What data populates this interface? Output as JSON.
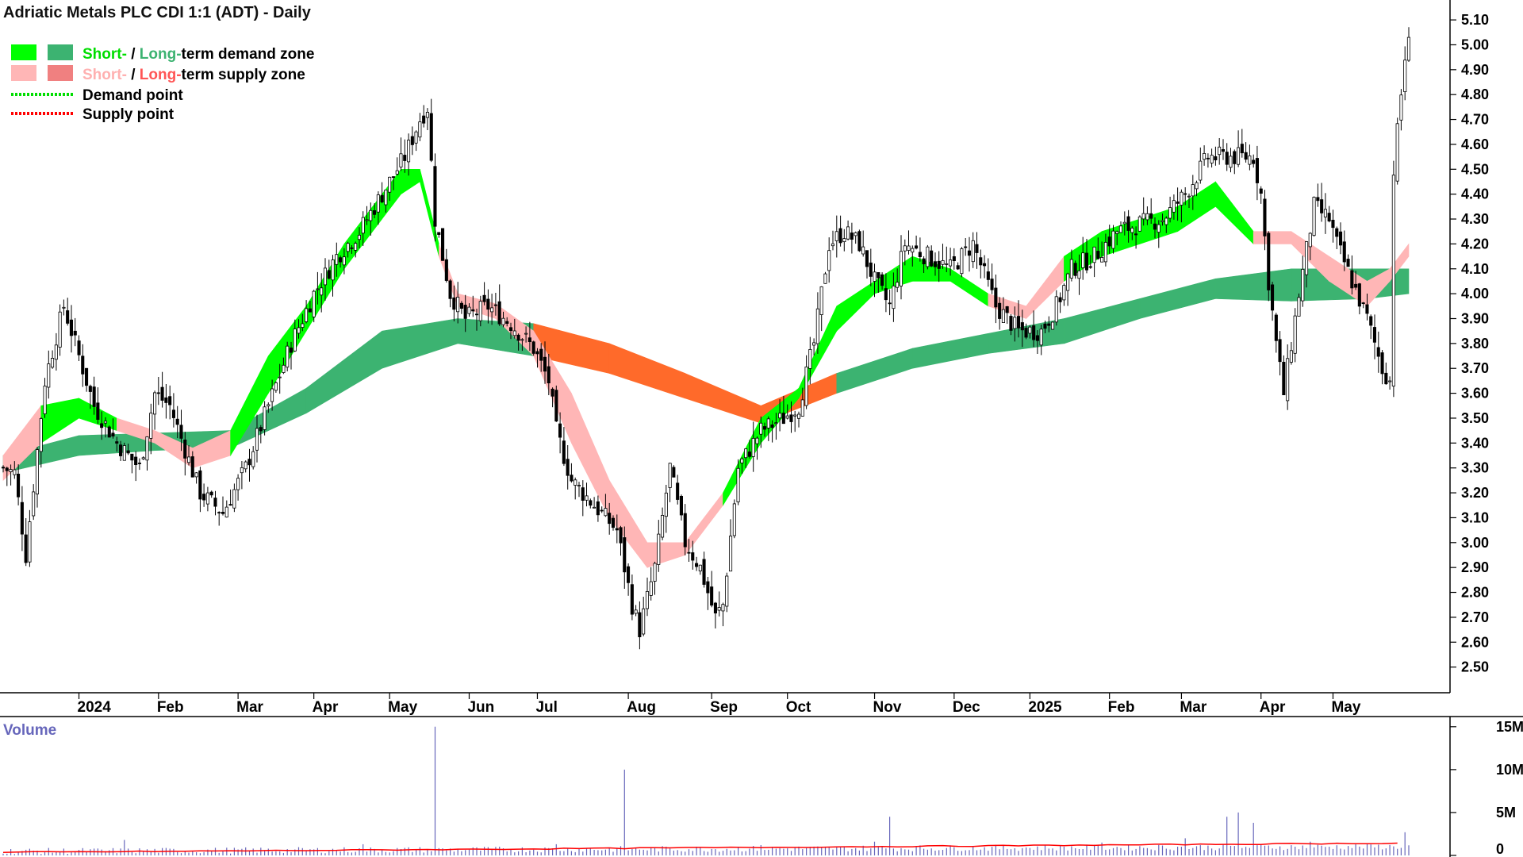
{
  "chart_data": {
    "type": "candlestick",
    "title": "Adriatic Metals PLC CDI 1:1 (ADT) - Daily",
    "frequency": "Daily",
    "ylim": [
      2.4,
      5.18
    ],
    "y_ticks": [
      "5.10",
      "5.00",
      "4.90",
      "4.80",
      "4.70",
      "4.60",
      "4.50",
      "4.40",
      "4.30",
      "4.20",
      "4.10",
      "4.00",
      "3.90",
      "3.80",
      "3.70",
      "3.60",
      "3.50",
      "3.40",
      "3.30",
      "3.20",
      "3.10",
      "3.00",
      "2.90",
      "2.80",
      "2.70",
      "2.60",
      "2.50"
    ],
    "months": [
      "2024",
      "Feb",
      "Mar",
      "Apr",
      "May",
      "Jun",
      "Jul",
      "Aug",
      "Sep",
      "Oct",
      "Nov",
      "Dec",
      "2025",
      "Feb",
      "Mar",
      "Apr",
      "May"
    ],
    "legend": {
      "demand_zone": {
        "short": "Short-",
        "sep": " / ",
        "long": "Long-",
        "rest": "term demand zone"
      },
      "supply_zone": {
        "short": "Short-",
        "sep": " / ",
        "long": "Long-",
        "rest": "term supply zone"
      },
      "demand_point": "Demand point",
      "supply_point": "Supply point"
    },
    "price_path": [
      [
        0,
        3.3
      ],
      [
        3,
        3.28
      ],
      [
        6,
        2.95
      ],
      [
        11,
        3.65
      ],
      [
        16,
        3.95
      ],
      [
        24,
        3.55
      ],
      [
        30,
        3.4
      ],
      [
        36,
        3.3
      ],
      [
        40,
        3.6
      ],
      [
        44,
        3.55
      ],
      [
        52,
        3.2
      ],
      [
        58,
        3.12
      ],
      [
        64,
        3.3
      ],
      [
        70,
        3.55
      ],
      [
        76,
        3.8
      ],
      [
        82,
        4.0
      ],
      [
        88,
        4.15
      ],
      [
        94,
        4.25
      ],
      [
        100,
        4.4
      ],
      [
        106,
        4.55
      ],
      [
        110,
        4.7
      ],
      [
        112,
        4.75
      ],
      [
        114,
        4.3
      ],
      [
        118,
        4.0
      ],
      [
        122,
        3.9
      ],
      [
        128,
        3.95
      ],
      [
        134,
        3.88
      ],
      [
        140,
        3.78
      ],
      [
        144,
        3.65
      ],
      [
        146,
        3.45
      ],
      [
        150,
        3.25
      ],
      [
        156,
        3.15
      ],
      [
        162,
        3.05
      ],
      [
        166,
        2.75
      ],
      [
        168,
        2.65
      ],
      [
        172,
        2.9
      ],
      [
        176,
        3.3
      ],
      [
        180,
        3.0
      ],
      [
        184,
        2.9
      ],
      [
        188,
        2.7
      ],
      [
        190,
        2.75
      ],
      [
        194,
        3.3
      ],
      [
        200,
        3.45
      ],
      [
        206,
        3.5
      ],
      [
        210,
        3.55
      ],
      [
        214,
        3.8
      ],
      [
        218,
        4.2
      ],
      [
        222,
        4.25
      ],
      [
        226,
        4.2
      ],
      [
        230,
        4.05
      ],
      [
        234,
        3.95
      ],
      [
        238,
        4.2
      ],
      [
        244,
        4.15
      ],
      [
        250,
        4.1
      ],
      [
        256,
        4.2
      ],
      [
        262,
        3.95
      ],
      [
        268,
        3.85
      ],
      [
        274,
        3.85
      ],
      [
        278,
        3.95
      ],
      [
        282,
        4.1
      ],
      [
        288,
        4.15
      ],
      [
        294,
        4.25
      ],
      [
        300,
        4.28
      ],
      [
        306,
        4.3
      ],
      [
        312,
        4.4
      ],
      [
        318,
        4.55
      ],
      [
        324,
        4.55
      ],
      [
        330,
        4.55
      ],
      [
        332,
        4.4
      ],
      [
        334,
        4.05
      ],
      [
        336,
        3.8
      ],
      [
        338,
        3.6
      ],
      [
        342,
        4.0
      ],
      [
        346,
        4.35
      ],
      [
        350,
        4.3
      ],
      [
        352,
        4.2
      ],
      [
        356,
        4.05
      ],
      [
        360,
        3.9
      ],
      [
        362,
        3.8
      ],
      [
        364,
        3.7
      ],
      [
        366,
        3.65
      ],
      [
        367,
        4.5
      ],
      [
        370,
        4.95
      ],
      [
        371,
        5.0
      ]
    ],
    "zones": {
      "long_term": {
        "x": [
          0,
          20,
          40,
          60,
          80,
          100,
          120,
          140,
          160,
          180,
          200,
          220,
          240,
          260,
          280,
          300,
          320,
          340,
          360,
          371
        ],
        "lower": [
          3.28,
          3.35,
          3.37,
          3.38,
          3.52,
          3.7,
          3.8,
          3.75,
          3.68,
          3.58,
          3.48,
          3.6,
          3.7,
          3.76,
          3.8,
          3.9,
          3.98,
          3.97,
          3.98,
          4.0
        ],
        "upper": [
          3.35,
          3.43,
          3.44,
          3.45,
          3.62,
          3.85,
          3.9,
          3.88,
          3.8,
          3.68,
          3.55,
          3.68,
          3.78,
          3.84,
          3.9,
          3.98,
          4.06,
          4.1,
          4.1,
          4.1
        ],
        "kind": [
          "d",
          "d",
          "d",
          "d",
          "d",
          "d",
          "d",
          "s",
          "s",
          "s",
          "s",
          "d",
          "d",
          "d",
          "d",
          "d",
          "d",
          "d",
          "d",
          "d"
        ]
      },
      "short_term": {
        "x": [
          0,
          10,
          20,
          30,
          40,
          50,
          60,
          70,
          80,
          90,
          100,
          105,
          110,
          115,
          120,
          130,
          140,
          150,
          160,
          170,
          180,
          190,
          200,
          210,
          220,
          230,
          240,
          250,
          260,
          270,
          280,
          290,
          300,
          310,
          320,
          330,
          340,
          350,
          360,
          366,
          371
        ],
        "lower": [
          3.25,
          3.4,
          3.5,
          3.45,
          3.4,
          3.3,
          3.35,
          3.6,
          3.85,
          4.1,
          4.3,
          4.4,
          4.45,
          4.15,
          3.95,
          3.9,
          3.75,
          3.4,
          3.1,
          2.9,
          2.95,
          3.15,
          3.4,
          3.58,
          3.85,
          4.0,
          4.05,
          4.05,
          3.95,
          3.9,
          4.05,
          4.15,
          4.2,
          4.25,
          4.35,
          4.2,
          4.2,
          4.05,
          3.95,
          4.05,
          4.15
        ],
        "upper": [
          3.35,
          3.55,
          3.58,
          3.5,
          3.45,
          3.38,
          3.45,
          3.75,
          3.95,
          4.2,
          4.4,
          4.5,
          4.5,
          4.2,
          4.0,
          3.96,
          3.85,
          3.6,
          3.25,
          3.0,
          3.0,
          3.2,
          3.5,
          3.62,
          3.95,
          4.05,
          4.15,
          4.1,
          4.0,
          3.95,
          4.15,
          4.25,
          4.3,
          4.35,
          4.45,
          4.25,
          4.25,
          4.15,
          4.05,
          4.1,
          4.2
        ],
        "kind": [
          "s",
          "d",
          "d",
          "s",
          "s",
          "s",
          "d",
          "d",
          "d",
          "d",
          "d",
          "d",
          "d",
          "s",
          "s",
          "s",
          "s",
          "s",
          "s",
          "s",
          "s",
          "d",
          "d",
          "d",
          "d",
          "d",
          "d",
          "d",
          "s",
          "s",
          "d",
          "d",
          "d",
          "d",
          "d",
          "s",
          "s",
          "s",
          "s",
          "s",
          "s"
        ]
      }
    },
    "volume": {
      "label": "Volume",
      "ylim": [
        0,
        16000000
      ],
      "y_ticks": [
        "15M",
        "10M",
        "5M",
        "0"
      ],
      "spikes": [
        [
          32,
          1800000
        ],
        [
          95,
          1300000
        ],
        [
          114,
          15000000
        ],
        [
          146,
          1300000
        ],
        [
          164,
          10000000
        ],
        [
          200,
          1200000
        ],
        [
          230,
          1600000
        ],
        [
          234,
          4500000
        ],
        [
          290,
          1500000
        ],
        [
          312,
          2000000
        ],
        [
          323,
          4500000
        ],
        [
          326,
          5000000
        ],
        [
          330,
          3800000
        ],
        [
          345,
          1600000
        ],
        [
          370,
          2700000
        ]
      ],
      "baseline": 450000,
      "avg_start": 350000,
      "avg_end": 1450000
    }
  },
  "colors": {
    "background": "#ffffff",
    "short_demand": "#00ff00",
    "long_demand": "#3cb371",
    "short_supply": "#ffb6b6",
    "long_supply": "#ff6a2a",
    "demand_point": "#00dd00",
    "supply_point": "#ff0000",
    "candle": "#000000",
    "volume_bar": "#6666bb",
    "volume_avg": "#ff0000",
    "axis": "#000000"
  }
}
